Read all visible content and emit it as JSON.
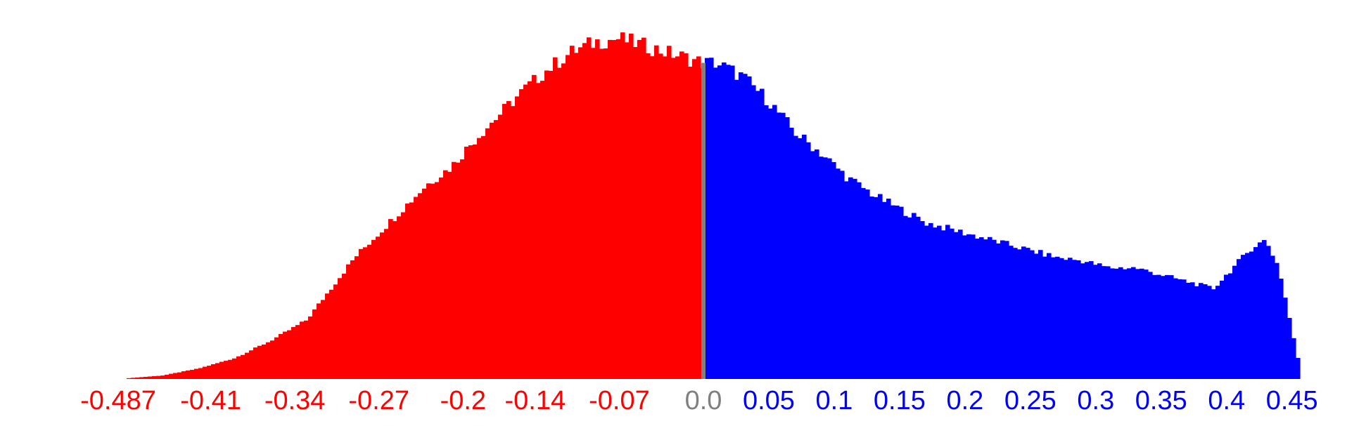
{
  "chart_data": {
    "type": "bar",
    "title": "",
    "xlabel": "",
    "ylabel": "",
    "xlim": [
      -0.487,
      0.455
    ],
    "ylim": [
      0,
      100
    ],
    "colors": {
      "negative": "#ff0000",
      "positive": "#0000ff",
      "zero": "#808080"
    },
    "tick_labels": [
      {
        "text": "-0.487",
        "value": -0.487,
        "sign": "neg"
      },
      {
        "text": "-0.41",
        "value": -0.41,
        "sign": "neg"
      },
      {
        "text": "-0.34",
        "value": -0.34,
        "sign": "neg"
      },
      {
        "text": "-0.27",
        "value": -0.27,
        "sign": "neg"
      },
      {
        "text": "-0.2",
        "value": -0.2,
        "sign": "neg"
      },
      {
        "text": "-0.14",
        "value": -0.14,
        "sign": "neg"
      },
      {
        "text": "-0.07",
        "value": -0.07,
        "sign": "neg"
      },
      {
        "text": "0.0",
        "value": 0.0,
        "sign": "zero"
      },
      {
        "text": "0.05",
        "value": 0.05,
        "sign": "pos"
      },
      {
        "text": "0.1",
        "value": 0.1,
        "sign": "pos"
      },
      {
        "text": "0.15",
        "value": 0.15,
        "sign": "pos"
      },
      {
        "text": "0.2",
        "value": 0.2,
        "sign": "pos"
      },
      {
        "text": "0.25",
        "value": 0.25,
        "sign": "pos"
      },
      {
        "text": "0.3",
        "value": 0.3,
        "sign": "pos"
      },
      {
        "text": "0.35",
        "value": 0.35,
        "sign": "pos"
      },
      {
        "text": "0.4",
        "value": 0.4,
        "sign": "pos"
      },
      {
        "text": "0.45",
        "value": 0.45,
        "sign": "pos"
      }
    ],
    "profile_x": [
      -0.487,
      -0.45,
      -0.42,
      -0.39,
      -0.36,
      -0.33,
      -0.31,
      -0.29,
      -0.27,
      -0.25,
      -0.23,
      -0.21,
      -0.19,
      -0.17,
      -0.15,
      -0.13,
      -0.11,
      -0.09,
      -0.07,
      -0.05,
      -0.03,
      -0.01,
      0.0,
      0.01,
      0.03,
      0.05,
      0.07,
      0.09,
      0.11,
      0.13,
      0.15,
      0.17,
      0.19,
      0.21,
      0.23,
      0.25,
      0.27,
      0.29,
      0.31,
      0.33,
      0.35,
      0.37,
      0.39,
      0.4,
      0.41,
      0.42,
      0.43,
      0.44,
      0.455
    ],
    "profile_y": [
      0,
      1,
      3,
      6,
      11,
      17,
      26,
      35,
      42,
      49,
      56,
      61,
      69,
      76,
      83,
      89,
      94,
      97,
      98,
      96,
      94,
      92,
      91,
      91,
      87,
      80,
      71,
      65,
      58,
      53,
      49,
      45,
      43,
      41,
      39,
      37,
      35,
      34,
      32,
      32,
      30,
      28,
      26,
      30,
      34,
      38,
      40,
      32,
      5
    ]
  }
}
